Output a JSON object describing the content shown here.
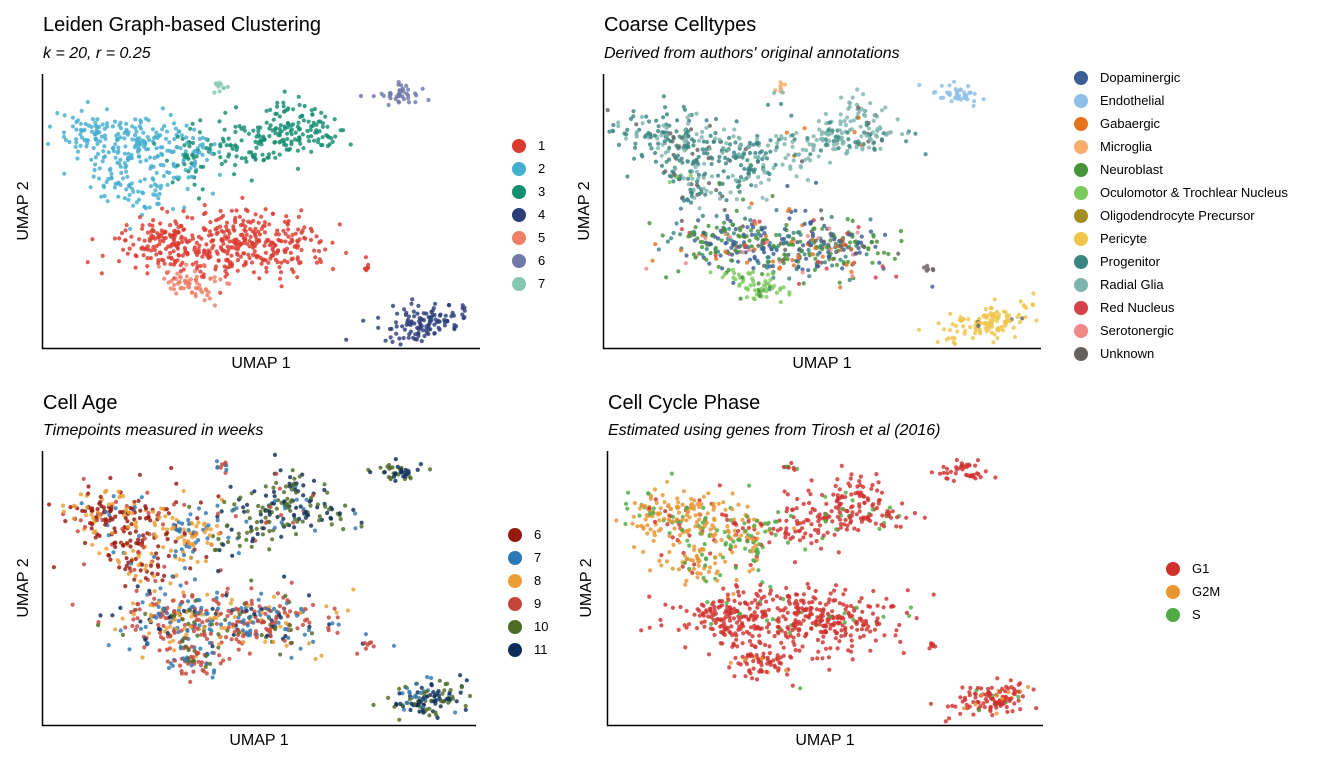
{
  "panels": [
    {
      "id": "leiden",
      "title": "Leiden Graph-based Clustering",
      "subtitle": "k = 20, r = 0.25",
      "xlabel": "UMAP 1",
      "ylabel": "UMAP 2",
      "legend": [
        {
          "label": "1",
          "color": "#dc3a2f"
        },
        {
          "label": "2",
          "color": "#45afcf"
        },
        {
          "label": "3",
          "color": "#138d70"
        },
        {
          "label": "4",
          "color": "#2c3e78"
        },
        {
          "label": "5",
          "color": "#ee7f66"
        },
        {
          "label": "6",
          "color": "#7079a8"
        },
        {
          "label": "7",
          "color": "#83c9b2"
        }
      ]
    },
    {
      "id": "celltypes",
      "title": "Coarse Celltypes",
      "subtitle": "Derived from authors' original annotations",
      "xlabel": "UMAP 1",
      "ylabel": "UMAP 2",
      "legend": [
        {
          "label": "Dopaminergic",
          "color": "#3d5d95"
        },
        {
          "label": "Endothelial",
          "color": "#8ec0e6"
        },
        {
          "label": "Gabaergic",
          "color": "#e5731d"
        },
        {
          "label": "Microglia",
          "color": "#f7ae6c"
        },
        {
          "label": "Neuroblast",
          "color": "#469438"
        },
        {
          "label": "Oculomotor & Trochlear Nucleus",
          "color": "#7cc95e"
        },
        {
          "label": "Oligodendrocyte Precursor",
          "color": "#a48d23"
        },
        {
          "label": "Pericyte",
          "color": "#efc54b"
        },
        {
          "label": "Progenitor",
          "color": "#398681"
        },
        {
          "label": "Radial Glia",
          "color": "#7fb4ad"
        },
        {
          "label": "Red Nucleus",
          "color": "#d6404a"
        },
        {
          "label": "Serotonergic",
          "color": "#f28787"
        },
        {
          "label": "Unknown",
          "color": "#666260"
        }
      ]
    },
    {
      "id": "age",
      "title": "Cell Age",
      "subtitle": "Timepoints measured in weeks",
      "xlabel": "UMAP 1",
      "ylabel": "UMAP 2",
      "legend": [
        {
          "label": "6",
          "color": "#96180f"
        },
        {
          "label": "7",
          "color": "#2f78b6"
        },
        {
          "label": "8",
          "color": "#ec9d31"
        },
        {
          "label": "9",
          "color": "#c4463a"
        },
        {
          "label": "10",
          "color": "#4c6b25"
        },
        {
          "label": "11",
          "color": "#0e2c58"
        }
      ]
    },
    {
      "id": "cycle",
      "title": "Cell Cycle Phase",
      "subtitle": "Estimated using genes from Tirosh et al (2016)",
      "xlabel": "UMAP 1",
      "ylabel": "UMAP 2",
      "legend": [
        {
          "label": "G1",
          "color": "#d0312d"
        },
        {
          "label": "G2M",
          "color": "#e99532"
        },
        {
          "label": "S",
          "color": "#4eab46"
        }
      ]
    }
  ],
  "chart_data": [
    {
      "type": "scatter",
      "title": "Leiden Graph-based Clustering",
      "subtitle": "k = 20, r = 0.25",
      "xlabel": "UMAP 1",
      "ylabel": "UMAP 2",
      "color_by": "cluster",
      "categories": [
        "1",
        "2",
        "3",
        "4",
        "5",
        "6",
        "7"
      ],
      "grid": false,
      "legend_position": "right"
    },
    {
      "type": "scatter",
      "title": "Coarse Celltypes",
      "subtitle": "Derived from authors' original annotations",
      "xlabel": "UMAP 1",
      "ylabel": "UMAP 2",
      "color_by": "celltype",
      "categories": [
        "Dopaminergic",
        "Endothelial",
        "Gabaergic",
        "Microglia",
        "Neuroblast",
        "Oculomotor & Trochlear Nucleus",
        "Oligodendrocyte Precursor",
        "Pericyte",
        "Progenitor",
        "Radial Glia",
        "Red Nucleus",
        "Serotonergic",
        "Unknown"
      ],
      "grid": false,
      "legend_position": "right"
    },
    {
      "type": "scatter",
      "title": "Cell Age",
      "subtitle": "Timepoints measured in weeks",
      "xlabel": "UMAP 1",
      "ylabel": "UMAP 2",
      "color_by": "age_weeks",
      "categories": [
        "6",
        "7",
        "8",
        "9",
        "10",
        "11"
      ],
      "grid": false,
      "legend_position": "right"
    },
    {
      "type": "scatter",
      "title": "Cell Cycle Phase",
      "subtitle": "Estimated using genes from Tirosh et al (2016)",
      "xlabel": "UMAP 1",
      "ylabel": "UMAP 2",
      "color_by": "phase",
      "categories": [
        "G1",
        "G2M",
        "S"
      ],
      "grid": false,
      "legend_position": "right"
    }
  ]
}
